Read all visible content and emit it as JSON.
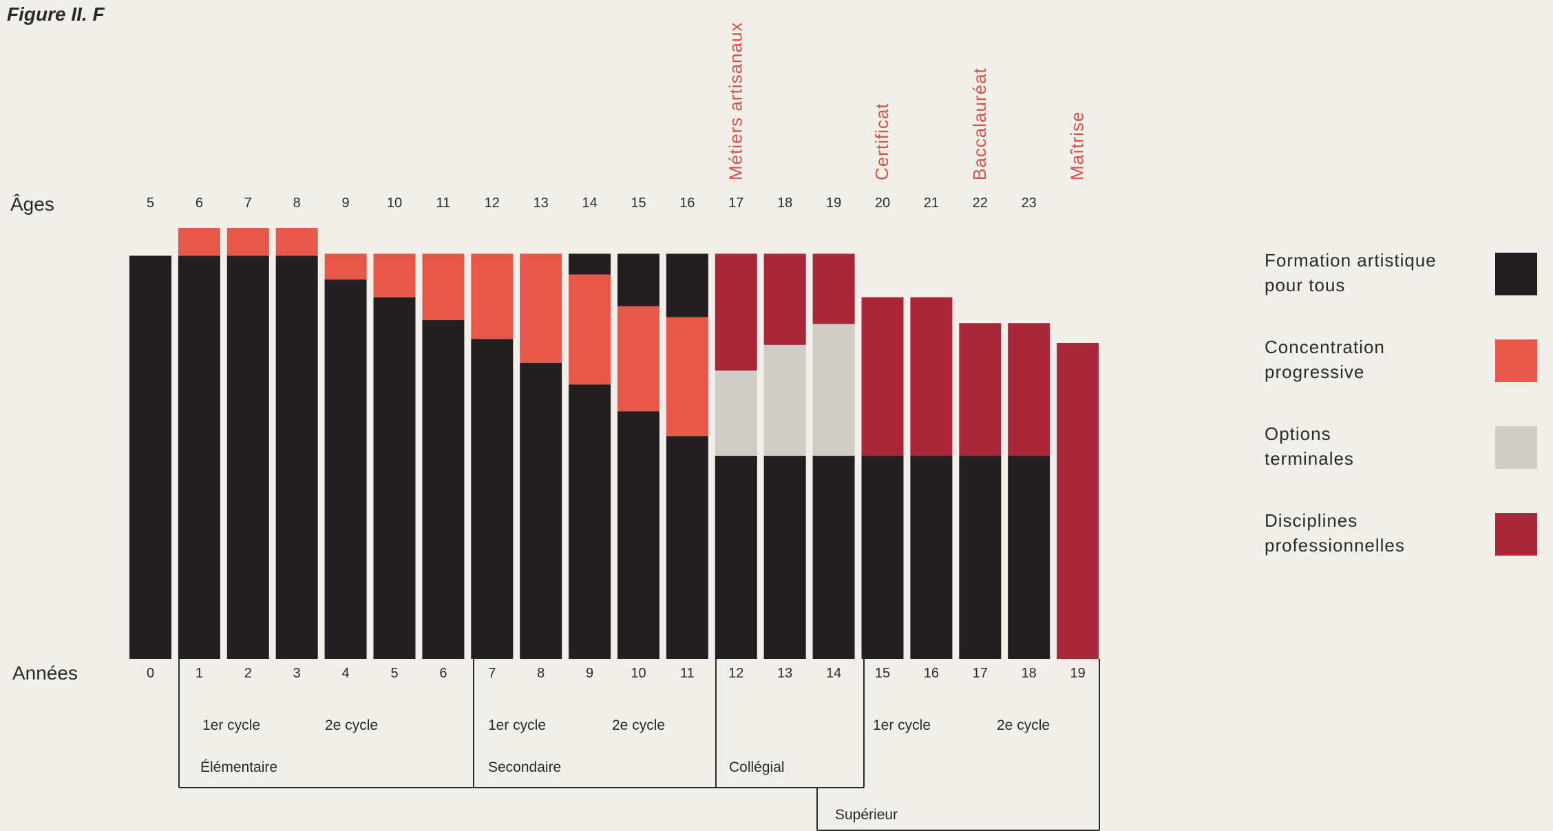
{
  "chart_data": {
    "type": "stacked-bar",
    "title": "Figure II. F",
    "age_axis_label": "Âges",
    "year_axis_label": "Années",
    "ages": [
      "5",
      "6",
      "7",
      "8",
      "9",
      "10",
      "11",
      "12",
      "13",
      "14",
      "15",
      "16",
      "17",
      "18",
      "19",
      "20",
      "21",
      "22",
      "23"
    ],
    "categories": [
      "0",
      "1",
      "2",
      "3",
      "4",
      "5",
      "6",
      "7",
      "8",
      "9",
      "10",
      "11",
      "12",
      "13",
      "14",
      "15",
      "16",
      "17",
      "18",
      "19"
    ],
    "milestones": [
      "Métiers artisanaux",
      "Certificat",
      "Baccalauréat",
      "Maîtrise"
    ],
    "ylim": [
      0,
      435
    ],
    "series": [
      {
        "name": "Formation artistique pour tous",
        "color": "#231f20",
        "values": [
          407,
          407,
          407,
          407,
          383,
          365,
          342,
          323,
          299,
          277,
          250,
          225,
          205,
          205,
          205,
          205,
          205,
          205,
          205,
          0
        ],
        "top_values": [
          0,
          0,
          0,
          0,
          0,
          0,
          0,
          0,
          0,
          21,
          53,
          64,
          0,
          0,
          0,
          0,
          0,
          0,
          0,
          0
        ]
      },
      {
        "name": "Concentration progressive",
        "color": "#e8574a",
        "values": [
          0,
          28,
          28,
          28,
          26,
          44,
          67,
          86,
          110,
          111,
          106,
          120,
          0,
          0,
          0,
          0,
          0,
          0,
          0,
          0
        ]
      },
      {
        "name": "Options terminales",
        "color": "#cfcdc8",
        "values": [
          0,
          0,
          0,
          0,
          0,
          0,
          0,
          0,
          0,
          0,
          0,
          0,
          86,
          112,
          133,
          0,
          0,
          0,
          0,
          0
        ]
      },
      {
        "name": "Disciplines professionnelles",
        "color": "#a8283a",
        "values": [
          0,
          0,
          0,
          0,
          0,
          0,
          0,
          0,
          0,
          0,
          0,
          0,
          118,
          92,
          71,
          160,
          160,
          134,
          134,
          319
        ]
      }
    ],
    "levels": [
      {
        "name": "Élémentaire",
        "cycles": [
          "1er cycle",
          "2e cycle"
        ]
      },
      {
        "name": "Secondaire",
        "cycles": [
          "1er cycle",
          "2e cycle"
        ]
      },
      {
        "name": "Collégial",
        "cycles": []
      },
      {
        "name": "Supérieur",
        "cycles": [
          "1er cycle",
          "2e cycle"
        ]
      }
    ]
  }
}
